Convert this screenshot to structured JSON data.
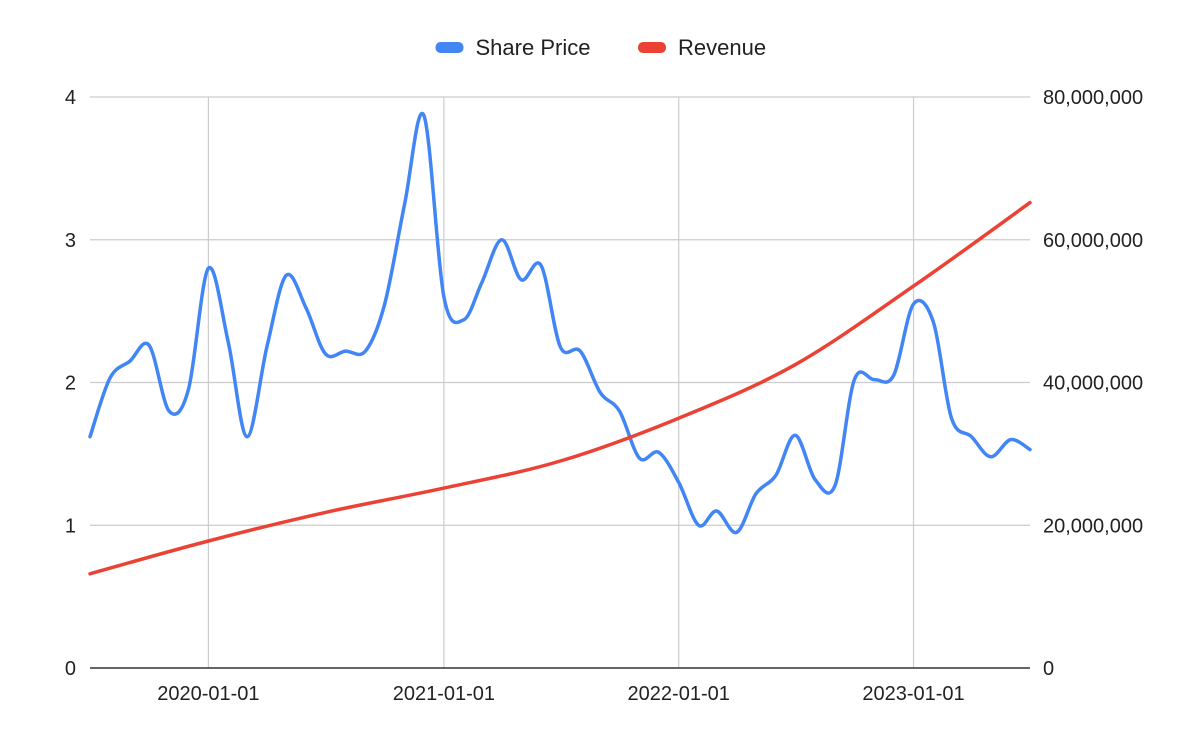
{
  "chart_data": {
    "type": "line",
    "title": "",
    "xlabel": "",
    "ylabel": "",
    "y2label": "",
    "legend_position": "top-center",
    "grid": true,
    "x_range": [
      "2019-07-01",
      "2023-07-01"
    ],
    "x_ticks": [
      "2020-01-01",
      "2021-01-01",
      "2022-01-01",
      "2023-01-01"
    ],
    "y_left": {
      "range": [
        0,
        4
      ],
      "ticks": [
        "0",
        "1",
        "2",
        "3",
        "4"
      ]
    },
    "y_right": {
      "range": [
        0,
        80000000
      ],
      "ticks": [
        "0",
        "20,000,000",
        "40,000,000",
        "60,000,000",
        "80,000,000"
      ]
    },
    "series": [
      {
        "name": "Share Price",
        "axis": "left",
        "color": "#4285F4",
        "points": [
          [
            "2019-07-01",
            1.62
          ],
          [
            "2019-08-01",
            2.03
          ],
          [
            "2019-09-01",
            2.15
          ],
          [
            "2019-10-01",
            2.26
          ],
          [
            "2019-11-01",
            1.8
          ],
          [
            "2019-12-01",
            1.95
          ],
          [
            "2020-01-01",
            2.8
          ],
          [
            "2020-02-01",
            2.28
          ],
          [
            "2020-03-01",
            1.62
          ],
          [
            "2020-04-01",
            2.25
          ],
          [
            "2020-05-01",
            2.75
          ],
          [
            "2020-06-01",
            2.52
          ],
          [
            "2020-07-01",
            2.2
          ],
          [
            "2020-08-01",
            2.22
          ],
          [
            "2020-09-01",
            2.22
          ],
          [
            "2020-10-01",
            2.55
          ],
          [
            "2020-11-01",
            3.25
          ],
          [
            "2020-12-01",
            3.87
          ],
          [
            "2021-01-01",
            2.6
          ],
          [
            "2021-02-01",
            2.44
          ],
          [
            "2021-03-01",
            2.7
          ],
          [
            "2021-04-01",
            3.0
          ],
          [
            "2021-05-01",
            2.72
          ],
          [
            "2021-06-01",
            2.82
          ],
          [
            "2021-07-01",
            2.25
          ],
          [
            "2021-08-01",
            2.22
          ],
          [
            "2021-09-01",
            1.93
          ],
          [
            "2021-10-01",
            1.8
          ],
          [
            "2021-11-01",
            1.47
          ],
          [
            "2021-12-01",
            1.51
          ],
          [
            "2022-01-01",
            1.3
          ],
          [
            "2022-02-01",
            1.0
          ],
          [
            "2022-03-01",
            1.1
          ],
          [
            "2022-04-01",
            0.95
          ],
          [
            "2022-05-01",
            1.22
          ],
          [
            "2022-06-01",
            1.35
          ],
          [
            "2022-07-01",
            1.63
          ],
          [
            "2022-08-01",
            1.32
          ],
          [
            "2022-09-01",
            1.28
          ],
          [
            "2022-10-01",
            2.02
          ],
          [
            "2022-11-01",
            2.02
          ],
          [
            "2022-12-01",
            2.05
          ],
          [
            "2023-01-01",
            2.55
          ],
          [
            "2023-02-01",
            2.42
          ],
          [
            "2023-03-01",
            1.75
          ],
          [
            "2023-04-01",
            1.62
          ],
          [
            "2023-05-01",
            1.48
          ],
          [
            "2023-06-01",
            1.6
          ],
          [
            "2023-07-01",
            1.53
          ]
        ]
      },
      {
        "name": "Revenue",
        "axis": "right",
        "color": "#EA4335",
        "points": [
          [
            "2019-07-01",
            13200000
          ],
          [
            "2020-01-01",
            17800000
          ],
          [
            "2020-07-01",
            21800000
          ],
          [
            "2021-01-01",
            25200000
          ],
          [
            "2021-07-01",
            29000000
          ],
          [
            "2022-01-01",
            35000000
          ],
          [
            "2022-07-01",
            42500000
          ],
          [
            "2023-01-01",
            53500000
          ],
          [
            "2023-07-01",
            65200000
          ]
        ]
      }
    ]
  }
}
